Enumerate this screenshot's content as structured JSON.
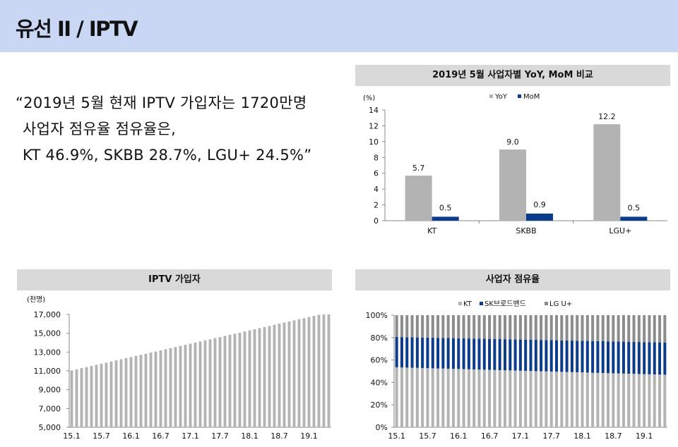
{
  "header": {
    "title": "유선 II / IPTV"
  },
  "quote": {
    "line1": "“2019년 5월 현재 IPTV 가입자는 1720만명",
    "line2": "사업자 점유율 점유율은,",
    "line3": "KT 46.9%, SKBB 28.7%, LGU+ 24.5%”"
  },
  "colors": {
    "header_bg": "#c9d7f5",
    "panel_bar": "#d9d9d9",
    "gray_bar": "#b3b3b3",
    "navy_bar": "#0b3c8c",
    "dark_gray": "#8c8c8c"
  },
  "chart_data": [
    {
      "type": "bar",
      "title": "2019년 5월 사업자별 YoY, MoM 비교",
      "ylabel": "(%)",
      "categories": [
        "KT",
        "SKBB",
        "LGU+"
      ],
      "series": [
        {
          "name": "YoY",
          "values": [
            5.7,
            9.0,
            12.2
          ]
        },
        {
          "name": "MoM",
          "values": [
            0.5,
            0.9,
            0.5
          ]
        }
      ],
      "data_labels": [
        [
          "5.7",
          "9.0",
          "12.2"
        ],
        [
          "0.5",
          "0.9",
          "0.5"
        ]
      ],
      "ylim": [
        0,
        14
      ],
      "yticks": [
        "0",
        "2",
        "4",
        "6",
        "8",
        "10",
        "12",
        "14"
      ],
      "legend": "top"
    },
    {
      "type": "bar",
      "title": "IPTV 가입자",
      "ylabel": "(천명)",
      "ylim": [
        5000,
        17000
      ],
      "yticks": [
        "5,000",
        "7,000",
        "9,000",
        "11,000",
        "13,000",
        "15,000",
        "17,000"
      ],
      "xticks": [
        "15.1",
        "15.7",
        "16.1",
        "16.7",
        "17.1",
        "17.7",
        "18.1",
        "18.7",
        "19.1"
      ],
      "start_value": 11050,
      "end_value": 17200,
      "num_bars": 53
    },
    {
      "type": "bar",
      "title": "사업자 점유율",
      "stacked": true,
      "legend_entries": [
        "KT",
        "SK브로드밴드",
        "LG U+"
      ],
      "yticks": [
        "0%",
        "20%",
        "40%",
        "60%",
        "80%",
        "100%"
      ],
      "xticks": [
        "15.1",
        "15.7",
        "16.1",
        "16.7",
        "17.1",
        "17.7",
        "18.1",
        "18.7",
        "19.1"
      ],
      "kt_share_start": 53.5,
      "kt_share_end": 46.9,
      "skb_share_start": 27.0,
      "skb_share_end": 28.7,
      "num_bars": 53,
      "legend": "top"
    }
  ]
}
